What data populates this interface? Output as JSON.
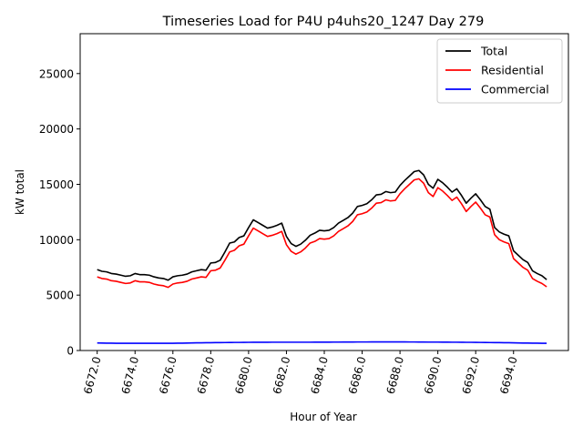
{
  "chart_data": {
    "type": "line",
    "title": "Timeseries Load for P4U p4uhs20_1247  Day 279",
    "xlabel": "Hour of Year",
    "ylabel": "kW total",
    "xlim": [
      6671.1,
      6696.9
    ],
    "ylim": [
      0,
      28600
    ],
    "x_ticks": [
      6672,
      6674,
      6676,
      6678,
      6680,
      6682,
      6684,
      6686,
      6688,
      6690,
      6692,
      6694
    ],
    "x_tick_labels": [
      "6672.0",
      "6674.0",
      "6676.0",
      "6678.0",
      "6680.0",
      "6682.0",
      "6684.0",
      "6686.0",
      "6688.0",
      "6690.0",
      "6692.0",
      "6694.0"
    ],
    "y_ticks": [
      0,
      5000,
      10000,
      15000,
      20000,
      25000
    ],
    "y_tick_labels": [
      "0",
      "5000",
      "10000",
      "15000",
      "20000",
      "25000"
    ],
    "grid": false,
    "legend_position": "top-right",
    "x_start": 6672,
    "x_step": 0.25,
    "series": [
      {
        "name": "Total",
        "color": "#000000",
        "values": [
          7300,
          7150,
          7100,
          6950,
          6900,
          6800,
          6700,
          6750,
          6950,
          6850,
          6850,
          6800,
          6650,
          6550,
          6500,
          6350,
          6650,
          6750,
          6800,
          6900,
          7100,
          7200,
          7300,
          7250,
          7900,
          7950,
          8150,
          8900,
          9700,
          9800,
          10200,
          10350,
          11100,
          11800,
          11550,
          11300,
          11050,
          11150,
          11300,
          11500,
          10300,
          9650,
          9400,
          9600,
          9950,
          10400,
          10600,
          10850,
          10800,
          10850,
          11100,
          11500,
          11750,
          12000,
          12400,
          13000,
          13100,
          13250,
          13600,
          14050,
          14100,
          14350,
          14250,
          14300,
          14900,
          15350,
          15750,
          16150,
          16250,
          15850,
          15000,
          14650,
          15450,
          15150,
          14750,
          14300,
          14600,
          14000,
          13300,
          13750,
          14150,
          13600,
          13000,
          12750,
          11100,
          10700,
          10500,
          10350,
          9000,
          8600,
          8200,
          7950,
          7200,
          6950,
          6750,
          6400
        ]
      },
      {
        "name": "Residential",
        "color": "#ff0000",
        "values": [
          6650,
          6500,
          6450,
          6300,
          6250,
          6150,
          6050,
          6100,
          6300,
          6200,
          6200,
          6150,
          6000,
          5900,
          5850,
          5700,
          6000,
          6100,
          6150,
          6250,
          6450,
          6550,
          6650,
          6600,
          7200,
          7250,
          7450,
          8150,
          8900,
          9050,
          9450,
          9600,
          10350,
          11050,
          10800,
          10550,
          10300,
          10400,
          10550,
          10750,
          9550,
          8950,
          8700,
          8900,
          9250,
          9700,
          9850,
          10100,
          10050,
          10100,
          10350,
          10750,
          11000,
          11250,
          11650,
          12250,
          12350,
          12500,
          12850,
          13300,
          13350,
          13600,
          13500,
          13550,
          14150,
          14600,
          15000,
          15400,
          15500,
          15100,
          14250,
          13900,
          14700,
          14400,
          14000,
          13550,
          13850,
          13250,
          12550,
          13000,
          13400,
          12850,
          12250,
          12050,
          10450,
          10000,
          9800,
          9650,
          8300,
          7900,
          7500,
          7250,
          6500,
          6250,
          6050,
          5750
        ]
      },
      {
        "name": "Commercial",
        "color": "#0000ff",
        "values": [
          680,
          670,
          665,
          660,
          655,
          650,
          650,
          650,
          650,
          650,
          650,
          650,
          650,
          650,
          650,
          650,
          655,
          660,
          665,
          670,
          680,
          690,
          695,
          700,
          705,
          710,
          715,
          720,
          725,
          730,
          730,
          735,
          740,
          745,
          745,
          745,
          745,
          750,
          750,
          750,
          750,
          750,
          750,
          750,
          750,
          750,
          755,
          755,
          755,
          755,
          760,
          760,
          765,
          765,
          765,
          770,
          770,
          770,
          775,
          775,
          775,
          775,
          775,
          775,
          775,
          775,
          770,
          770,
          765,
          765,
          760,
          760,
          760,
          755,
          755,
          750,
          750,
          745,
          740,
          740,
          735,
          730,
          725,
          720,
          715,
          710,
          705,
          700,
          690,
          680,
          675,
          670,
          665,
          660,
          655,
          650
        ]
      }
    ]
  }
}
